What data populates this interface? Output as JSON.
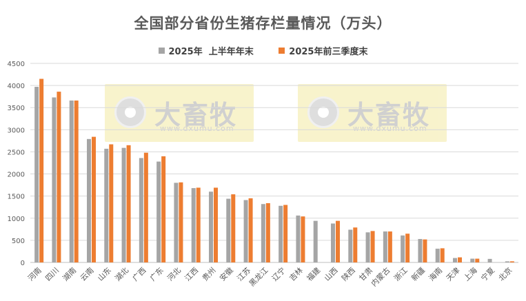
{
  "chart_data": {
    "type": "bar",
    "title": "全国部分省份生猪存栏量情况（万头）",
    "categories": [
      "河南",
      "四川",
      "湖南",
      "云南",
      "山东",
      "湖北",
      "广西",
      "广东",
      "河北",
      "江西",
      "贵州",
      "安徽",
      "江苏",
      "黑龙江",
      "辽宁",
      "吉林",
      "福建",
      "山西",
      "陕西",
      "甘肃",
      "内蒙古",
      "浙江",
      "新疆",
      "海南",
      "天津",
      "上海",
      "宁夏",
      "北京"
    ],
    "series": [
      {
        "name": "2025年  上半年年末",
        "color": "#a5a5a5",
        "values": [
          3970,
          3730,
          3660,
          2790,
          2570,
          2590,
          2360,
          2280,
          1800,
          1680,
          1600,
          1440,
          1410,
          1320,
          1280,
          1060,
          940,
          880,
          740,
          680,
          700,
          610,
          530,
          310,
          100,
          85,
          80,
          25
        ]
      },
      {
        "name": "2025年前三季度末",
        "color": "#ed7d31",
        "values": [
          4150,
          3860,
          3660,
          2840,
          2670,
          2650,
          2480,
          2400,
          1810,
          1690,
          1690,
          1540,
          1450,
          1340,
          1300,
          1040,
          null,
          940,
          790,
          710,
          700,
          650,
          520,
          320,
          115,
          85,
          null,
          25
        ]
      }
    ],
    "ylim": [
      0,
      4500
    ],
    "yticks": [
      0,
      500,
      1000,
      1500,
      2000,
      2500,
      3000,
      3500,
      4000,
      4500
    ],
    "grid": true,
    "legend_position": "top"
  },
  "watermark": {
    "brand": "大畜牧",
    "site": "www.dxumu.com"
  }
}
